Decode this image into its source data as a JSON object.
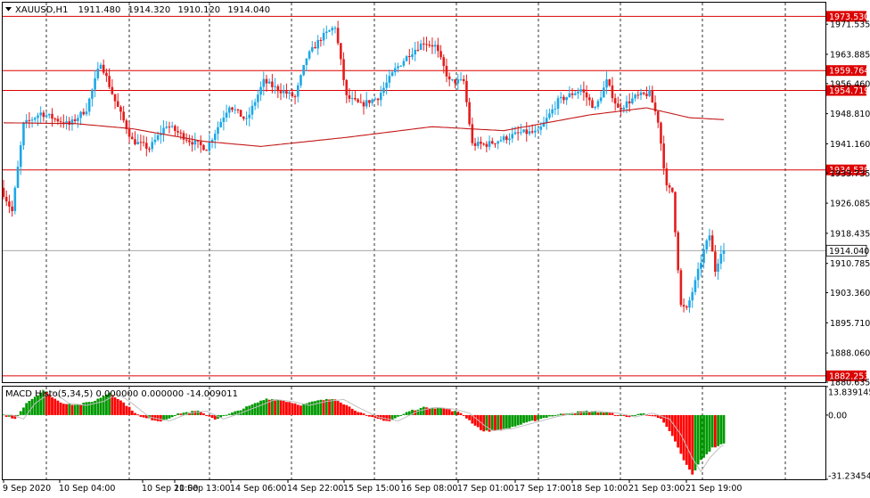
{
  "window": {
    "symbol": "XAUUSD,H1",
    "ohlc": [
      "1911.480",
      "1914.320",
      "1910.120",
      "1914.040"
    ],
    "menu_icon": "triangle-down-icon"
  },
  "chart_data": [
    {
      "type": "candlestick",
      "symbol": "XAUUSD",
      "timeframe": "H1",
      "ylim": [
        1880.635,
        1977.0
      ],
      "y_ticks": [
        "1971.535",
        "1963.885",
        "1956.460",
        "1948.810",
        "1941.160",
        "1933.735",
        "1926.085",
        "1918.435",
        "1910.785",
        "1903.360",
        "1895.710",
        "1888.060",
        "1880.635"
      ],
      "x_ticks": [
        "9 Sep 2020",
        "10 Sep 04:00",
        "10 Sep 20:00",
        "11 Sep 13:00",
        "14 Sep 06:00",
        "14 Sep 22:00",
        "15 Sep 15:00",
        "16 Sep 08:00",
        "17 Sep 01:00",
        "17 Sep 17:00",
        "18 Sep 10:00",
        "21 Sep 03:00",
        "21 Sep 19:00"
      ],
      "current_price": "1914.040",
      "levels": [
        {
          "label": "1973.530",
          "value": 1973.53
        },
        {
          "label": "1959.764",
          "value": 1959.764
        },
        {
          "label": "1954.719",
          "value": 1954.719
        },
        {
          "label": "1934.539",
          "value": 1934.539
        },
        {
          "label": "1882.253",
          "value": 1882.253
        }
      ],
      "moving_average_anchors": [
        {
          "bar": 0,
          "value": 1946.5
        },
        {
          "bar": 25,
          "value": 1946.3
        },
        {
          "bar": 45,
          "value": 1945.0
        },
        {
          "bar": 70,
          "value": 1941.8
        },
        {
          "bar": 90,
          "value": 1940.5
        },
        {
          "bar": 120,
          "value": 1942.8
        },
        {
          "bar": 150,
          "value": 1945.5
        },
        {
          "bar": 175,
          "value": 1944.5
        },
        {
          "bar": 205,
          "value": 1948.5
        },
        {
          "bar": 225,
          "value": 1950.3
        },
        {
          "bar": 240,
          "value": 1947.8
        },
        {
          "bar": 252,
          "value": 1947.3
        }
      ],
      "path_anchors": [
        {
          "bar": 0,
          "value": 1930
        },
        {
          "bar": 4,
          "value": 1924
        },
        {
          "bar": 8,
          "value": 1946
        },
        {
          "bar": 14,
          "value": 1949
        },
        {
          "bar": 24,
          "value": 1946
        },
        {
          "bar": 30,
          "value": 1950
        },
        {
          "bar": 35,
          "value": 1962
        },
        {
          "bar": 40,
          "value": 1952
        },
        {
          "bar": 46,
          "value": 1942
        },
        {
          "bar": 52,
          "value": 1940
        },
        {
          "bar": 58,
          "value": 1946
        },
        {
          "bar": 66,
          "value": 1942
        },
        {
          "bar": 72,
          "value": 1940
        },
        {
          "bar": 80,
          "value": 1951
        },
        {
          "bar": 86,
          "value": 1947
        },
        {
          "bar": 92,
          "value": 1957
        },
        {
          "bar": 97,
          "value": 1955
        },
        {
          "bar": 103,
          "value": 1953
        },
        {
          "bar": 107,
          "value": 1963
        },
        {
          "bar": 112,
          "value": 1968
        },
        {
          "bar": 117,
          "value": 1971
        },
        {
          "bar": 121,
          "value": 1953
        },
        {
          "bar": 126,
          "value": 1951
        },
        {
          "bar": 132,
          "value": 1953
        },
        {
          "bar": 138,
          "value": 1960
        },
        {
          "bar": 143,
          "value": 1964
        },
        {
          "bar": 148,
          "value": 1967
        },
        {
          "bar": 152,
          "value": 1966
        },
        {
          "bar": 157,
          "value": 1957
        },
        {
          "bar": 162,
          "value": 1957
        },
        {
          "bar": 165,
          "value": 1941
        },
        {
          "bar": 170,
          "value": 1941
        },
        {
          "bar": 178,
          "value": 1943
        },
        {
          "bar": 182,
          "value": 1944
        },
        {
          "bar": 188,
          "value": 1944
        },
        {
          "bar": 195,
          "value": 1952
        },
        {
          "bar": 203,
          "value": 1955
        },
        {
          "bar": 208,
          "value": 1950
        },
        {
          "bar": 212,
          "value": 1957
        },
        {
          "bar": 216,
          "value": 1950
        },
        {
          "bar": 222,
          "value": 1953
        },
        {
          "bar": 227,
          "value": 1954
        },
        {
          "bar": 230,
          "value": 1947
        },
        {
          "bar": 233,
          "value": 1930
        },
        {
          "bar": 235,
          "value": 1929
        },
        {
          "bar": 238,
          "value": 1900
        },
        {
          "bar": 240,
          "value": 1899
        },
        {
          "bar": 243,
          "value": 1906
        },
        {
          "bar": 246,
          "value": 1914
        },
        {
          "bar": 248,
          "value": 1918
        },
        {
          "bar": 250,
          "value": 1909
        },
        {
          "bar": 252,
          "value": 1914
        }
      ]
    },
    {
      "type": "bar",
      "indicator": "MACD Histogram",
      "label": "MACD Histo(5,34,5) 0.000000 0.000000 -14.009011",
      "ylim": [
        -31.234544,
        13.839145
      ],
      "y_ticks": [
        "13.839145",
        "0.00",
        "-31.234544"
      ],
      "colors": {
        "up": "#009900",
        "down": "#ff0000",
        "signal": "#c0c0c0"
      },
      "histogram_anchors": [
        {
          "bar": 0,
          "value": 0
        },
        {
          "bar": 4,
          "value": -2
        },
        {
          "bar": 8,
          "value": 6
        },
        {
          "bar": 14,
          "value": 12
        },
        {
          "bar": 20,
          "value": 6
        },
        {
          "bar": 26,
          "value": 5
        },
        {
          "bar": 32,
          "value": 7
        },
        {
          "bar": 37,
          "value": 11
        },
        {
          "bar": 42,
          "value": 6
        },
        {
          "bar": 48,
          "value": -1
        },
        {
          "bar": 55,
          "value": -3
        },
        {
          "bar": 62,
          "value": 1
        },
        {
          "bar": 68,
          "value": 2
        },
        {
          "bar": 74,
          "value": -2
        },
        {
          "bar": 80,
          "value": 1
        },
        {
          "bar": 87,
          "value": 5
        },
        {
          "bar": 92,
          "value": 8
        },
        {
          "bar": 98,
          "value": 7
        },
        {
          "bar": 104,
          "value": 5
        },
        {
          "bar": 110,
          "value": 7
        },
        {
          "bar": 116,
          "value": 8
        },
        {
          "bar": 121,
          "value": 4
        },
        {
          "bar": 128,
          "value": -1
        },
        {
          "bar": 135,
          "value": -3
        },
        {
          "bar": 142,
          "value": 2
        },
        {
          "bar": 148,
          "value": 4
        },
        {
          "bar": 155,
          "value": 3
        },
        {
          "bar": 160,
          "value": 1
        },
        {
          "bar": 165,
          "value": -5
        },
        {
          "bar": 168,
          "value": -8
        },
        {
          "bar": 175,
          "value": -7
        },
        {
          "bar": 185,
          "value": -3
        },
        {
          "bar": 190,
          "value": -1
        },
        {
          "bar": 197,
          "value": 1
        },
        {
          "bar": 205,
          "value": 2
        },
        {
          "bar": 212,
          "value": 1
        },
        {
          "bar": 218,
          "value": -1
        },
        {
          "bar": 224,
          "value": 1
        },
        {
          "bar": 230,
          "value": -2
        },
        {
          "bar": 234,
          "value": -10
        },
        {
          "bar": 238,
          "value": -22
        },
        {
          "bar": 241,
          "value": -29
        },
        {
          "bar": 244,
          "value": -22
        },
        {
          "bar": 248,
          "value": -16
        },
        {
          "bar": 252,
          "value": -14
        }
      ]
    }
  ],
  "colors": {
    "bull": "#1ea7e6",
    "bear": "#e51c1c",
    "ma": "#c41818",
    "level": "#dd0000",
    "grid": "#000000",
    "price_line": "#9a9a9a"
  }
}
